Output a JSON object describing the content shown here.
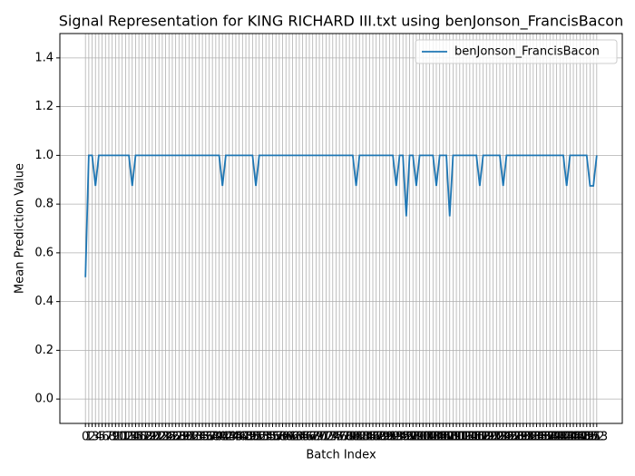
{
  "chart_data": {
    "type": "line",
    "title": "Signal Representation for KING RICHARD III.txt using benJonson_FrancisBacon",
    "xlabel": "Batch Index",
    "ylabel": "Mean Prediction Value",
    "x": [
      0,
      1,
      2,
      3,
      4,
      5,
      6,
      7,
      8,
      9,
      10,
      11,
      12,
      13,
      14,
      15,
      16,
      17,
      18,
      19,
      20,
      21,
      22,
      23,
      24,
      25,
      26,
      27,
      28,
      29,
      30,
      31,
      32,
      33,
      34,
      35,
      36,
      37,
      38,
      39,
      40,
      41,
      42,
      43,
      44,
      45,
      46,
      47,
      48,
      49,
      50,
      51,
      52,
      53,
      54,
      55,
      56,
      57,
      58,
      59,
      60,
      61,
      62,
      63,
      64,
      65,
      66,
      67,
      68,
      69,
      70,
      71,
      72,
      73,
      74,
      75,
      76,
      77,
      78,
      79,
      80,
      81,
      82,
      83,
      84,
      85,
      86,
      87,
      88,
      89,
      90,
      91,
      92,
      93,
      94,
      95,
      96,
      97,
      98,
      99,
      100,
      101,
      102,
      103,
      104,
      105,
      106,
      107,
      108,
      109,
      110,
      111,
      112,
      113,
      114,
      115,
      116,
      117,
      118,
      119,
      120,
      121,
      122,
      123,
      124,
      125,
      126,
      127,
      128,
      129,
      130,
      131,
      132,
      133,
      134,
      135,
      136,
      137,
      138,
      139,
      140,
      141,
      142,
      143,
      144,
      145,
      146,
      147,
      148,
      149,
      150,
      151,
      152,
      153
    ],
    "series": [
      {
        "name": "benJonson_FrancisBacon",
        "color": "#1f77b4",
        "values": [
          0.5,
          1,
          1,
          0.875,
          1,
          1,
          1,
          1,
          1,
          1,
          1,
          1,
          1,
          1,
          0.875,
          1,
          1,
          1,
          1,
          1,
          1,
          1,
          1,
          1,
          1,
          1,
          1,
          1,
          1,
          1,
          1,
          1,
          1,
          1,
          1,
          1,
          1,
          1,
          1,
          1,
          1,
          0.875,
          1,
          1,
          1,
          1,
          1,
          1,
          1,
          1,
          1,
          0.875,
          1,
          1,
          1,
          1,
          1,
          1,
          1,
          1,
          1,
          1,
          1,
          1,
          1,
          1,
          1,
          1,
          1,
          1,
          1,
          1,
          1,
          1,
          1,
          1,
          1,
          1,
          1,
          1,
          1,
          0.875,
          1,
          1,
          1,
          1,
          1,
          1,
          1,
          1,
          1,
          1,
          1,
          0.875,
          1,
          1,
          0.75,
          1,
          1,
          0.875,
          1,
          1,
          1,
          1,
          1,
          0.875,
          1,
          1,
          1,
          0.75,
          1,
          1,
          1,
          1,
          1,
          1,
          1,
          1,
          0.875,
          1,
          1,
          1,
          1,
          1,
          1,
          0.875,
          1,
          1,
          1,
          1,
          1,
          1,
          1,
          1,
          1,
          1,
          1,
          1,
          1,
          1,
          1,
          1,
          1,
          1,
          0.875,
          1,
          1,
          1,
          1,
          1,
          1,
          0.875,
          0.875,
          1
        ]
      }
    ],
    "xlim": [
      -7.65,
      160.65
    ],
    "xticks": [
      0,
      1,
      2,
      3,
      4,
      5,
      6,
      7,
      8,
      9,
      10,
      11,
      12,
      13,
      14,
      15,
      16,
      17,
      18,
      19,
      20,
      21,
      22,
      23,
      24,
      25,
      26,
      27,
      28,
      29,
      30,
      31,
      32,
      33,
      34,
      35,
      36,
      37,
      38,
      39,
      40,
      41,
      42,
      43,
      44,
      45,
      46,
      47,
      48,
      49,
      50,
      51,
      52,
      53,
      54,
      55,
      56,
      57,
      58,
      59,
      60,
      61,
      62,
      63,
      64,
      65,
      66,
      67,
      68,
      69,
      70,
      71,
      72,
      73,
      74,
      75,
      76,
      77,
      78,
      79,
      80,
      81,
      82,
      83,
      84,
      85,
      86,
      87,
      88,
      89,
      90,
      91,
      92,
      93,
      94,
      95,
      96,
      97,
      98,
      99,
      100,
      101,
      102,
      103,
      104,
      105,
      106,
      107,
      108,
      109,
      110,
      111,
      112,
      113,
      114,
      115,
      116,
      117,
      118,
      119,
      120,
      121,
      122,
      123,
      124,
      125,
      126,
      127,
      128,
      129,
      130,
      131,
      132,
      133,
      134,
      135,
      136,
      137,
      138,
      139,
      140,
      141,
      142,
      143,
      144,
      145,
      146,
      147,
      148,
      149,
      150,
      151,
      152,
      153
    ],
    "ylim": [
      -0.1,
      1.5
    ],
    "yticks": [
      {
        "value": 0,
        "label": "0.0"
      },
      {
        "value": 0.2,
        "label": "0.2"
      },
      {
        "value": 0.4,
        "label": "0.4"
      },
      {
        "value": 0.6,
        "label": "0.6"
      },
      {
        "value": 0.8,
        "label": "0.8"
      },
      {
        "value": 1,
        "label": "1.0"
      },
      {
        "value": 1.2,
        "label": "1.2"
      },
      {
        "value": 1.4,
        "label": "1.4"
      }
    ],
    "grid": true,
    "legend": "upper right"
  }
}
